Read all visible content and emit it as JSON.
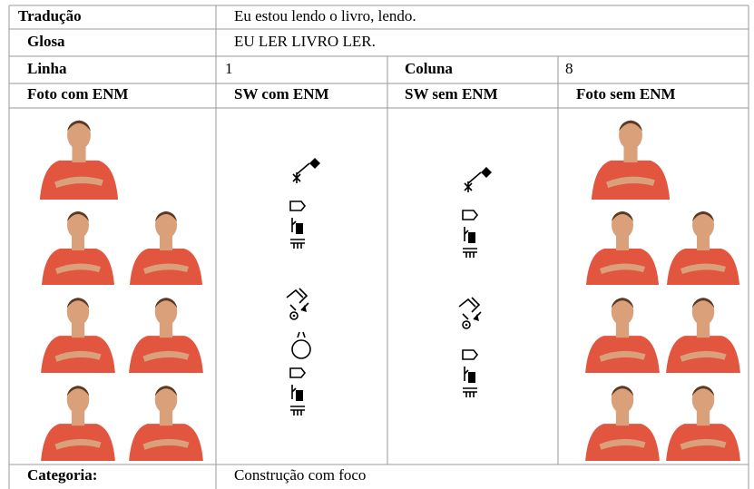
{
  "table": {
    "rows": [
      [
        "Tradução",
        "Eu estou lendo o livro, lendo."
      ],
      [
        "Glosa",
        "EU LER LIVRO LER."
      ],
      [
        "Linha",
        "1",
        "Coluna",
        "8"
      ],
      [
        "Foto com ENM",
        "SW com ENM",
        "SW sem ENM",
        "Foto sem ENM"
      ],
      [
        "Categoria:",
        "Construção com foco"
      ]
    ]
  }
}
